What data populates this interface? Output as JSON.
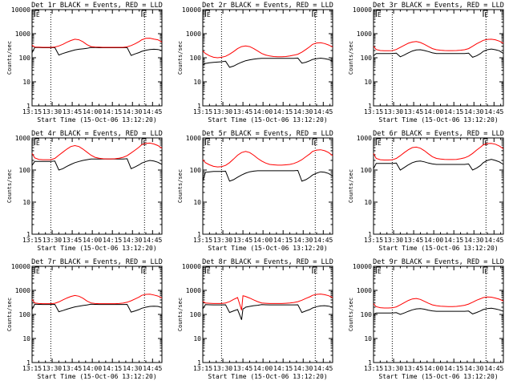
{
  "colors": {
    "events": "#000000",
    "lld": "#ff0000",
    "axis": "#000000"
  },
  "common": {
    "x_ticks": [
      "13:15",
      "13:30",
      "13:45",
      "14:00",
      "14:15",
      "14:30",
      "14:45"
    ],
    "x_tick_values_min": [
      0,
      15,
      30,
      45,
      60,
      75,
      90
    ],
    "x_range_min": [
      0,
      97
    ],
    "dotted_lines_min": [
      14,
      84
    ],
    "marker_label": "E",
    "marker_min": [
      2,
      82
    ],
    "xlabel": "Start Time (15-Oct-06 13:12:20)",
    "ylabel": "Counts/sec",
    "yscale": "log"
  },
  "chart_data": [
    {
      "type": "line",
      "title": "Det 1r BLACK = Events, RED = LLD",
      "ylim": [
        1,
        10000
      ],
      "yticks": [
        "1",
        "10",
        "100",
        "1000",
        "10000"
      ],
      "x_min": [
        0,
        2,
        5,
        8,
        11,
        14,
        17,
        20,
        23,
        26,
        29,
        32,
        35,
        38,
        41,
        44,
        47,
        50,
        53,
        56,
        59,
        62,
        65,
        68,
        71,
        74,
        77,
        80,
        82,
        85,
        88,
        91,
        94,
        97
      ],
      "series": [
        {
          "name": "BLACK = Events",
          "values": [
            160,
            270,
            265,
            262,
            262,
            262,
            265,
            130,
            150,
            170,
            190,
            210,
            225,
            235,
            245,
            270,
            265,
            262,
            262,
            262,
            262,
            262,
            262,
            262,
            265,
            125,
            145,
            165,
            185,
            205,
            220,
            225,
            220,
            200
          ]
        },
        {
          "name": "RED = LLD",
          "values": [
            330,
            280,
            275,
            272,
            272,
            272,
            280,
            310,
            360,
            440,
            520,
            590,
            560,
            460,
            350,
            290,
            280,
            275,
            272,
            272,
            272,
            272,
            272,
            272,
            285,
            320,
            380,
            470,
            560,
            640,
            650,
            600,
            560,
            450
          ]
        }
      ]
    },
    {
      "type": "line",
      "title": "Det 2r BLACK = Events, RED = LLD",
      "ylim": [
        1,
        10000
      ],
      "yticks": [
        "1",
        "10",
        "100",
        "1000",
        "10000"
      ],
      "x_min": [
        0,
        2,
        5,
        8,
        11,
        14,
        17,
        20,
        23,
        26,
        29,
        32,
        35,
        38,
        41,
        44,
        47,
        50,
        53,
        56,
        59,
        62,
        65,
        68,
        71,
        74,
        77,
        80,
        82,
        85,
        88,
        91,
        94,
        97
      ],
      "series": [
        {
          "name": "BLACK = Events",
          "values": [
            50,
            58,
            62,
            64,
            66,
            68,
            72,
            40,
            45,
            55,
            65,
            75,
            82,
            88,
            92,
            95,
            95,
            95,
            95,
            95,
            95,
            95,
            95,
            95,
            97,
            60,
            65,
            75,
            85,
            92,
            96,
            92,
            85,
            70
          ]
        },
        {
          "name": "RED = LLD",
          "values": [
            190,
            150,
            120,
            105,
            100,
            105,
            115,
            140,
            180,
            240,
            290,
            310,
            290,
            240,
            190,
            150,
            130,
            118,
            112,
            110,
            110,
            112,
            118,
            128,
            140,
            170,
            220,
            290,
            360,
            410,
            420,
            390,
            340,
            280
          ]
        }
      ]
    },
    {
      "type": "line",
      "title": "Det 3r BLACK = Events, RED = LLD",
      "ylim": [
        1,
        10000
      ],
      "yticks": [
        "1",
        "10",
        "100",
        "1000",
        "10000"
      ],
      "x_min": [
        0,
        2,
        5,
        8,
        11,
        14,
        17,
        20,
        23,
        26,
        29,
        32,
        35,
        38,
        41,
        44,
        47,
        50,
        53,
        56,
        59,
        62,
        65,
        68,
        71,
        74,
        77,
        80,
        82,
        85,
        88,
        91,
        94,
        97
      ],
      "series": [
        {
          "name": "BLACK = Events",
          "values": [
            120,
            150,
            150,
            150,
            150,
            150,
            155,
            110,
            130,
            160,
            190,
            210,
            215,
            200,
            180,
            160,
            150,
            150,
            150,
            150,
            150,
            150,
            150,
            150,
            155,
            105,
            120,
            150,
            185,
            215,
            230,
            215,
            195,
            150
          ]
        },
        {
          "name": "RED = LLD",
          "values": [
            300,
            220,
            200,
            195,
            195,
            198,
            220,
            270,
            330,
            400,
            450,
            470,
            430,
            360,
            290,
            240,
            215,
            205,
            200,
            198,
            198,
            200,
            205,
            215,
            240,
            300,
            380,
            460,
            530,
            580,
            590,
            560,
            490,
            400
          ]
        }
      ]
    },
    {
      "type": "line",
      "title": "Det 4r BLACK = Events, RED = LLD",
      "ylim": [
        1,
        1000
      ],
      "yticks": [
        "1",
        "10",
        "100",
        "1000"
      ],
      "x_min": [
        0,
        2,
        5,
        8,
        11,
        14,
        17,
        20,
        23,
        26,
        29,
        32,
        35,
        38,
        41,
        44,
        47,
        50,
        53,
        56,
        59,
        62,
        65,
        68,
        71,
        74,
        77,
        80,
        82,
        85,
        88,
        91,
        94,
        97
      ],
      "series": [
        {
          "name": "BLACK = Events",
          "values": [
            140,
            185,
            185,
            185,
            185,
            185,
            190,
            100,
            110,
            130,
            150,
            170,
            185,
            200,
            210,
            220,
            220,
            220,
            220,
            220,
            220,
            220,
            220,
            220,
            225,
            110,
            125,
            145,
            165,
            185,
            200,
            190,
            175,
            150
          ]
        },
        {
          "name": "RED = LLD",
          "values": [
            330,
            240,
            215,
            210,
            210,
            210,
            230,
            290,
            360,
            450,
            540,
            580,
            540,
            450,
            360,
            290,
            250,
            235,
            225,
            222,
            222,
            225,
            235,
            250,
            280,
            340,
            420,
            520,
            620,
            680,
            690,
            650,
            580,
            480
          ]
        }
      ]
    },
    {
      "type": "line",
      "title": "Det 5r BLACK = Events, RED = LLD",
      "ylim": [
        1,
        1000
      ],
      "yticks": [
        "1",
        "10",
        "100",
        "1000"
      ],
      "x_min": [
        0,
        2,
        5,
        8,
        11,
        14,
        17,
        20,
        23,
        26,
        29,
        32,
        35,
        38,
        41,
        44,
        47,
        50,
        53,
        56,
        59,
        62,
        65,
        68,
        71,
        74,
        77,
        80,
        82,
        85,
        88,
        91,
        94,
        97
      ],
      "series": [
        {
          "name": "BLACK = Events",
          "values": [
            45,
            85,
            88,
            90,
            90,
            90,
            92,
            45,
            50,
            60,
            70,
            80,
            88,
            92,
            95,
            95,
            95,
            95,
            95,
            95,
            95,
            95,
            95,
            95,
            97,
            45,
            50,
            60,
            70,
            80,
            88,
            85,
            78,
            65
          ]
        },
        {
          "name": "RED = LLD",
          "values": [
            210,
            170,
            145,
            130,
            125,
            128,
            140,
            170,
            220,
            290,
            350,
            380,
            350,
            290,
            230,
            190,
            165,
            150,
            145,
            142,
            142,
            145,
            150,
            160,
            180,
            210,
            260,
            320,
            380,
            420,
            430,
            400,
            350,
            280
          ]
        }
      ]
    },
    {
      "type": "line",
      "title": "Det 6r BLACK = Events, RED = LLD",
      "ylim": [
        1,
        1000
      ],
      "yticks": [
        "1",
        "10",
        "100",
        "1000"
      ],
      "x_min": [
        0,
        2,
        5,
        8,
        11,
        14,
        17,
        20,
        23,
        26,
        29,
        32,
        35,
        38,
        41,
        44,
        47,
        50,
        53,
        56,
        59,
        62,
        65,
        68,
        71,
        74,
        77,
        80,
        82,
        85,
        88,
        91,
        94,
        97
      ],
      "series": [
        {
          "name": "BLACK = Events",
          "values": [
            110,
            160,
            160,
            160,
            160,
            160,
            165,
            100,
            120,
            145,
            170,
            185,
            190,
            180,
            165,
            155,
            150,
            150,
            150,
            150,
            150,
            150,
            150,
            150,
            155,
            100,
            115,
            140,
            170,
            200,
            215,
            200,
            180,
            150
          ]
        },
        {
          "name": "RED = LLD",
          "values": [
            330,
            230,
            210,
            205,
            205,
            208,
            230,
            280,
            350,
            430,
            500,
            520,
            480,
            400,
            320,
            260,
            230,
            220,
            215,
            212,
            212,
            215,
            225,
            240,
            270,
            330,
            420,
            520,
            610,
            670,
            680,
            640,
            560,
            460
          ]
        }
      ]
    },
    {
      "type": "line",
      "title": "Det 7r BLACK = Events, RED = LLD",
      "ylim": [
        1,
        10000
      ],
      "yticks": [
        "1",
        "10",
        "100",
        "1000",
        "10000"
      ],
      "x_min": [
        0,
        2,
        5,
        8,
        11,
        14,
        17,
        20,
        23,
        26,
        29,
        32,
        35,
        38,
        41,
        44,
        47,
        50,
        53,
        56,
        59,
        62,
        65,
        68,
        71,
        74,
        77,
        80,
        82,
        85,
        88,
        91,
        94,
        97
      ],
      "series": [
        {
          "name": "BLACK = Events",
          "values": [
            160,
            265,
            262,
            260,
            260,
            260,
            262,
            130,
            145,
            165,
            185,
            205,
            220,
            235,
            245,
            265,
            262,
            260,
            260,
            260,
            260,
            260,
            260,
            260,
            262,
            125,
            140,
            160,
            180,
            200,
            215,
            220,
            215,
            195
          ]
        },
        {
          "name": "RED = LLD",
          "values": [
            420,
            300,
            285,
            280,
            280,
            280,
            290,
            330,
            400,
            480,
            560,
            610,
            570,
            470,
            360,
            300,
            285,
            280,
            280,
            280,
            280,
            280,
            285,
            295,
            320,
            370,
            440,
            530,
            620,
            680,
            690,
            640,
            580,
            480
          ]
        }
      ]
    },
    {
      "type": "line",
      "title": "Det 8r BLACK = Events, RED = LLD",
      "ylim": [
        1,
        10000
      ],
      "yticks": [
        "1",
        "10",
        "100",
        "1000",
        "10000"
      ],
      "x_min": [
        0,
        2,
        5,
        8,
        11,
        14,
        17,
        20,
        23,
        26,
        29,
        30,
        31,
        32,
        35,
        38,
        41,
        44,
        47,
        50,
        53,
        56,
        59,
        62,
        65,
        68,
        71,
        74,
        77,
        80,
        82,
        85,
        88,
        91,
        94,
        97
      ],
      "series": [
        {
          "name": "BLACK = Events",
          "values": [
            170,
            255,
            252,
            250,
            250,
            250,
            252,
            120,
            140,
            160,
            60,
            170,
            180,
            200,
            215,
            230,
            240,
            255,
            252,
            250,
            250,
            250,
            250,
            250,
            250,
            250,
            252,
            120,
            140,
            160,
            185,
            210,
            225,
            230,
            220,
            200
          ]
        },
        {
          "name": "RED = LLD",
          "values": [
            350,
            300,
            290,
            285,
            285,
            285,
            300,
            340,
            420,
            500,
            150,
            600,
            580,
            560,
            480,
            400,
            340,
            300,
            290,
            285,
            285,
            285,
            285,
            290,
            300,
            315,
            340,
            390,
            460,
            540,
            620,
            680,
            700,
            660,
            600,
            500
          ]
        }
      ]
    },
    {
      "type": "line",
      "title": "Det 9r BLACK = Events, RED = LLD",
      "ylim": [
        1,
        10000
      ],
      "yticks": [
        "1",
        "10",
        "100",
        "1000",
        "10000"
      ],
      "x_min": [
        0,
        2,
        5,
        8,
        11,
        14,
        17,
        20,
        23,
        26,
        29,
        32,
        35,
        38,
        41,
        44,
        47,
        50,
        53,
        56,
        59,
        62,
        65,
        68,
        71,
        74,
        77,
        80,
        82,
        85,
        88,
        91,
        94,
        97
      ],
      "series": [
        {
          "name": "BLACK = Events",
          "values": [
            100,
            115,
            115,
            115,
            115,
            115,
            118,
            100,
            115,
            135,
            155,
            170,
            175,
            165,
            150,
            140,
            135,
            135,
            135,
            135,
            135,
            135,
            135,
            135,
            138,
            105,
            120,
            140,
            160,
            175,
            180,
            170,
            155,
            135
          ]
        },
        {
          "name": "RED = LLD",
          "values": [
            280,
            210,
            190,
            185,
            185,
            188,
            205,
            250,
            310,
            380,
            440,
            460,
            420,
            350,
            290,
            250,
            230,
            220,
            215,
            212,
            212,
            215,
            225,
            240,
            270,
            320,
            390,
            450,
            500,
            530,
            520,
            480,
            430,
            360
          ]
        }
      ]
    }
  ]
}
